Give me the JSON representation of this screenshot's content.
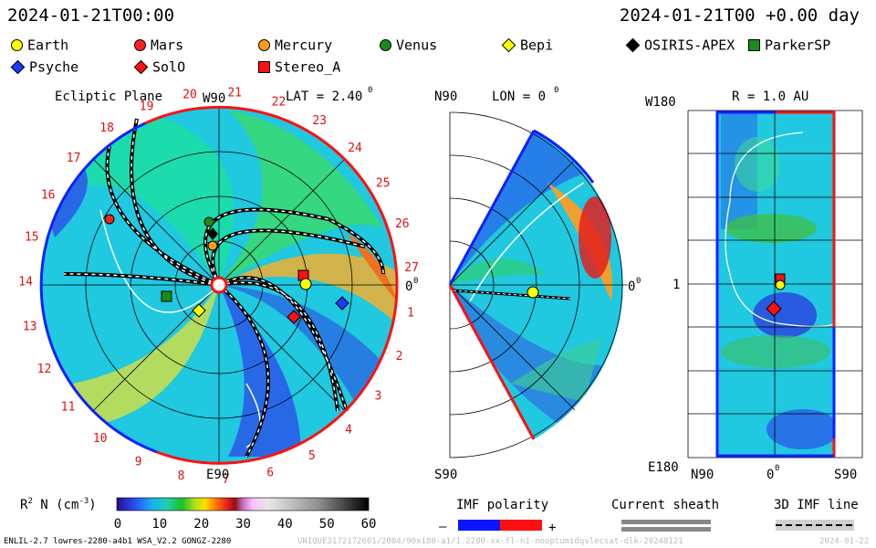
{
  "header": {
    "left_time": "2024-01-21T00:00",
    "right_time": "2024-01-21T00 +0.00 day"
  },
  "legend": [
    {
      "name": "Earth",
      "shape": "circle",
      "color": "#ffff00"
    },
    {
      "name": "Mars",
      "shape": "circle",
      "color": "#ff2020"
    },
    {
      "name": "Mercury",
      "shape": "circle",
      "color": "#ff9c1c"
    },
    {
      "name": "Venus",
      "shape": "circle",
      "color": "#1a8c1a"
    },
    {
      "name": "Bepi",
      "shape": "diamond",
      "color": "#ffff00"
    },
    {
      "name": "OSIRIS-APEX",
      "shape": "diamond",
      "color": "#000000"
    },
    {
      "name": "ParkerSP",
      "shape": "square",
      "color": "#1a8c1a"
    },
    {
      "name": "Psyche",
      "shape": "diamond",
      "color": "#1a3cff"
    },
    {
      "name": "SolO",
      "shape": "diamond",
      "color": "#ff1010"
    },
    {
      "name": "Stereo_A",
      "shape": "square",
      "color": "#ff1010"
    }
  ],
  "ecliptic": {
    "title": "Ecliptic Plane",
    "top_label": "W90",
    "lat_label": "LAT = 2.40",
    "lat_sup": "0",
    "right_label": "0",
    "right_sup": "0",
    "bottom_label": "E90",
    "carrington_numbers": [
      "19",
      "20",
      "21",
      "22",
      "23",
      "24",
      "25",
      "26",
      "27",
      "1",
      "2",
      "3",
      "4",
      "5",
      "6",
      "7",
      "8",
      "9",
      "10",
      "11",
      "12",
      "13",
      "14",
      "15",
      "16",
      "17",
      "18"
    ]
  },
  "meridional": {
    "top_left": "N90",
    "lon_label": "LON = 0",
    "lon_sup": "0",
    "right_label": "0",
    "right_sup": "0",
    "bottom_left": "S90"
  },
  "surface": {
    "r_label": "R = 1.0 AU",
    "top_left": "W180",
    "mid_left": "1",
    "bottom_left": "E180",
    "x_left": "N90",
    "x_mid": "0",
    "x_mid_sup": "0",
    "x_right": "S90"
  },
  "colorbar": {
    "label": "R",
    "label_sup": "2",
    "label_rest": " N (cm",
    "label_sup2": "-3",
    "label_end": ")",
    "ticks": [
      "0",
      "10",
      "20",
      "30",
      "40",
      "50",
      "60"
    ]
  },
  "imf": {
    "title": "IMF polarity",
    "minus": "–",
    "plus": "+",
    "neg_color": "#0a14ff",
    "pos_color": "#ff1010"
  },
  "sheath": {
    "title": "Current sheath"
  },
  "imf3d": {
    "title": "3D IMF line"
  },
  "footer": {
    "left": "ENLIL-2.7 lowres-2280-a4b1 WSA_V2.2 GONGZ-2280",
    "middle": "UNIQUE3172172601/2004/90x180-a1/1.2280-xx-fl-n1-nooptumidqvlecsat-dlk-20240121",
    "right": "2024-01-22"
  }
}
